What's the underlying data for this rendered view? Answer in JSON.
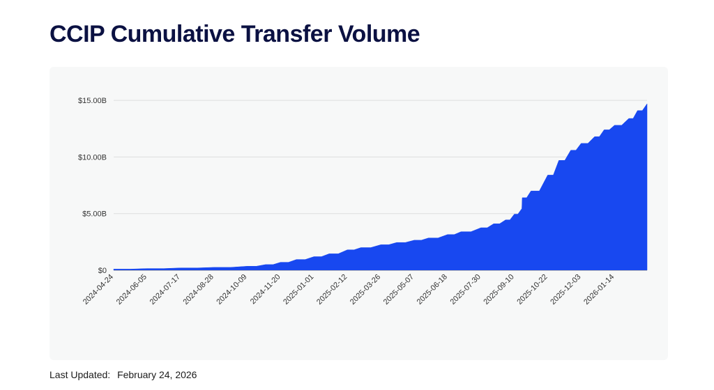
{
  "page": {
    "title": "CCIP Cumulative Transfer Volume",
    "footer_label": "Last Updated:",
    "footer_date": "February 24, 2026"
  },
  "colors": {
    "area": "#1848f0",
    "grid": "#dddddd",
    "card_bg": "#f7f8f8",
    "title": "#0b1142"
  },
  "chart_data": {
    "type": "area",
    "title": "",
    "xlabel": "",
    "ylabel": "",
    "ylim": [
      0,
      15500000000
    ],
    "grid": true,
    "legend": "none",
    "y_ticks": [
      {
        "value": 0,
        "label": "$0"
      },
      {
        "value": 5000000000,
        "label": "$5.00B"
      },
      {
        "value": 10000000000,
        "label": "$10.00B"
      },
      {
        "value": 15000000000,
        "label": "$15.00B"
      }
    ],
    "x_ticks": [
      "2024-04-24",
      "2024-06-05",
      "2024-07-17",
      "2024-08-28",
      "2024-10-09",
      "2024-11-20",
      "2025-01-01",
      "2025-02-12",
      "2025-03-26",
      "2025-05-07",
      "2025-06-18",
      "2025-07-30",
      "2025-09-10",
      "2025-10-22",
      "2025-12-03",
      "2026-01-14"
    ],
    "series": [
      {
        "x": [
          "2024-04-24",
          "2024-06-05",
          "2024-07-17",
          "2024-08-28",
          "2024-10-09",
          "2024-11-01",
          "2024-11-20",
          "2024-12-10",
          "2025-01-01",
          "2025-01-20",
          "2025-02-12",
          "2025-03-01",
          "2025-03-26",
          "2025-04-15",
          "2025-05-07",
          "2025-05-25",
          "2025-06-18",
          "2025-07-05",
          "2025-07-30",
          "2025-08-15",
          "2025-08-30",
          "2025-09-10",
          "2025-09-19",
          "2025-09-20",
          "2025-10-01",
          "2025-10-22",
          "2025-11-05",
          "2025-11-20",
          "2025-12-03",
          "2025-12-20",
          "2026-01-01",
          "2026-01-14",
          "2026-02-01",
          "2026-02-12",
          "2026-02-24"
        ],
        "values": [
          100000000,
          150000000,
          200000000,
          250000000,
          350000000,
          500000000,
          700000000,
          950000000,
          1200000000,
          1450000000,
          1800000000,
          2000000000,
          2250000000,
          2450000000,
          2650000000,
          2850000000,
          3150000000,
          3400000000,
          3750000000,
          4100000000,
          4450000000,
          4950000000,
          5400000000,
          6400000000,
          7000000000,
          8400000000,
          9700000000,
          10600000000,
          11200000000,
          11800000000,
          12400000000,
          12800000000,
          13400000000,
          14100000000,
          14700000000
        ]
      }
    ]
  }
}
